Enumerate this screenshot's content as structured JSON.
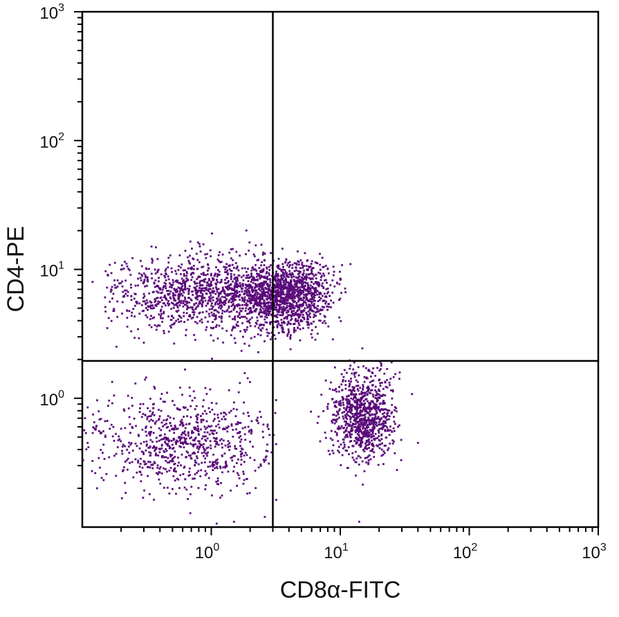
{
  "chart_data": {
    "type": "scatter",
    "title": "",
    "xlabel": "CD8α-FITC",
    "ylabel": "CD4-PE",
    "x_scale": "log",
    "y_scale": "log",
    "xlim": [
      0.1,
      1000
    ],
    "ylim": [
      0.1,
      1000
    ],
    "x_ticks": [
      {
        "base": "10",
        "exp": "0",
        "value": 1
      },
      {
        "base": "10",
        "exp": "1",
        "value": 10
      },
      {
        "base": "10",
        "exp": "2",
        "value": 100
      },
      {
        "base": "10",
        "exp": "3",
        "value": 1000
      }
    ],
    "y_ticks": [
      {
        "base": "10",
        "exp": "0",
        "value": 1
      },
      {
        "base": "10",
        "exp": "1",
        "value": 10
      },
      {
        "base": "10",
        "exp": "2",
        "value": 100
      },
      {
        "base": "10",
        "exp": "3",
        "value": 1000
      }
    ],
    "gates": {
      "x": 3.0,
      "y": 1.95
    },
    "grid": false,
    "point_color": "#5a0a7a",
    "populations": [
      {
        "x_center": 1.0,
        "x_sigma_log10": 0.42,
        "y_center": 6.5,
        "y_sigma_log10": 0.15,
        "count": 1100,
        "x_min": 0.15,
        "x_max": 2.6
      },
      {
        "x_center": 3.8,
        "x_sigma_log10": 0.17,
        "y_center": 6.3,
        "y_sigma_log10": 0.13,
        "count": 1300,
        "x_min": 1.4,
        "x_max": 11
      },
      {
        "x_center": 0.65,
        "x_sigma_log10": 0.36,
        "y_center": 0.45,
        "y_sigma_log10": 0.18,
        "count": 800,
        "x_min": 0.1,
        "x_max": 3.2
      },
      {
        "x_center": 15,
        "x_sigma_log10": 0.12,
        "y_center": 0.72,
        "y_sigma_log10": 0.17,
        "count": 900,
        "x_min": 5,
        "x_max": 40
      }
    ],
    "sparse_points": [
      {
        "x": 0.12,
        "y": 8.0
      },
      {
        "x": 0.11,
        "y": 0.45
      },
      {
        "x": 0.13,
        "y": 0.2
      },
      {
        "x": 9.8,
        "y": 5.8
      },
      {
        "x": 12,
        "y": 11
      },
      {
        "x": 40,
        "y": 0.45
      },
      {
        "x": 25,
        "y": 1.9
      },
      {
        "x": 2.6,
        "y": 0.12
      },
      {
        "x": 1.5,
        "y": 0.11
      },
      {
        "x": 14,
        "y": 0.11
      },
      {
        "x": 0.3,
        "y": 2.7
      },
      {
        "x": 0.9,
        "y": 1.2
      }
    ]
  }
}
